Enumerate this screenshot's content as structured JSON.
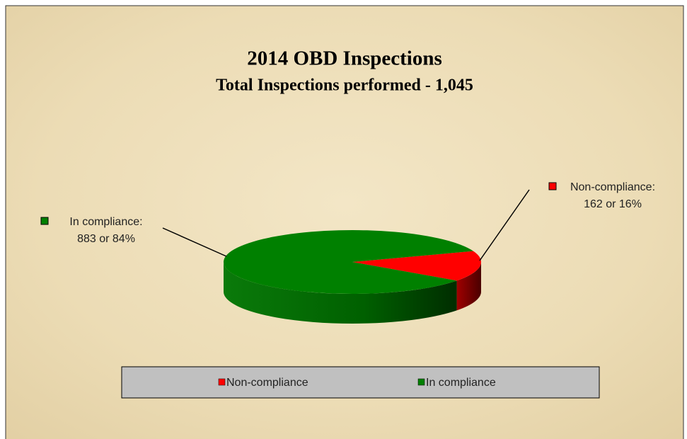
{
  "chart_data": {
    "type": "pie",
    "title": "2014 OBD Inspections",
    "subtitle": "Total Inspections performed - 1,045",
    "categories": [
      "Non-compliance",
      "In compliance"
    ],
    "values": [
      162,
      883
    ],
    "label_names": [
      "Non-compliance:",
      "In compliance:"
    ],
    "value_labels": [
      "162 or 16%",
      "883 or 84%"
    ],
    "colors": [
      "#ff0000",
      "#008000"
    ],
    "legend": "bottom"
  }
}
